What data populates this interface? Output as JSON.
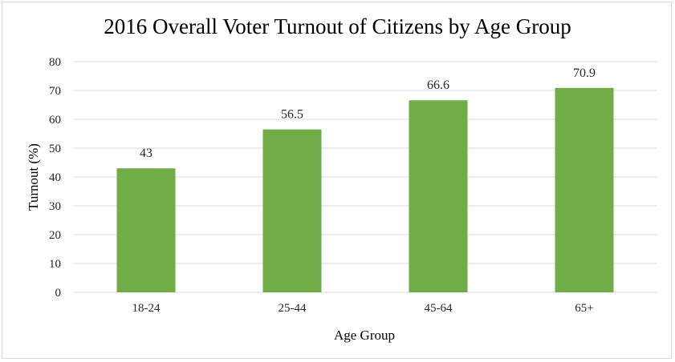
{
  "chart_data": {
    "type": "bar",
    "title": "2016 Overall Voter Turnout of Citizens by Age Group",
    "xlabel": "Age Group",
    "ylabel": "Turnout (%)",
    "categories": [
      "18-24",
      "25-44",
      "45-64",
      "65+"
    ],
    "values": [
      43,
      56.5,
      66.6,
      70.9
    ],
    "data_labels": [
      "43",
      "56.5",
      "66.6",
      "70.9"
    ],
    "ylim": [
      0,
      80
    ],
    "yticks": [
      0,
      10,
      20,
      30,
      40,
      50,
      60,
      70,
      80
    ],
    "grid": true,
    "legend": "none",
    "bar_color": "#70ad47",
    "grid_color": "#d9d9d9"
  }
}
